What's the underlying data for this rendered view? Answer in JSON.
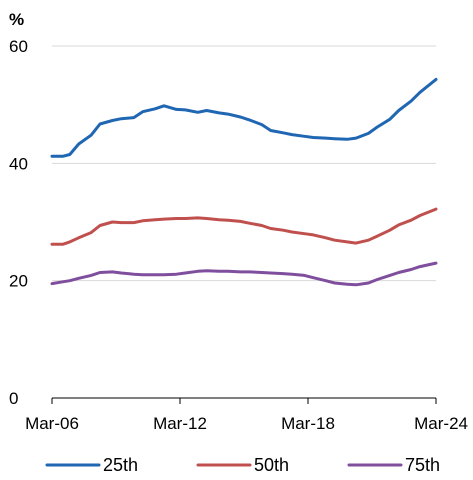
{
  "chart_data": {
    "type": "line",
    "y_unit": "%",
    "ylim": [
      0,
      60
    ],
    "y_ticks": [
      0,
      20,
      40,
      60
    ],
    "y_tick_labels": [
      "0",
      "20",
      "40",
      "60"
    ],
    "x_range": [
      "2006-03",
      "2024-03"
    ],
    "x_ticks": [
      "2006-03",
      "2012-03",
      "2018-03",
      "2024-03"
    ],
    "x_tick_labels": [
      "Mar-06",
      "Mar-12",
      "Mar-18",
      "Mar-24"
    ],
    "grid": "horizontal",
    "legend_position": "bottom",
    "series": [
      {
        "name": "25th",
        "color": "#1f66b3",
        "points": [
          [
            "2006-03",
            41.2
          ],
          [
            "2006-09",
            41.2
          ],
          [
            "2007-01",
            41.5
          ],
          [
            "2007-06",
            43.3
          ],
          [
            "2008-01",
            44.8
          ],
          [
            "2008-06",
            46.7
          ],
          [
            "2009-01",
            47.3
          ],
          [
            "2009-06",
            47.6
          ],
          [
            "2010-01",
            47.8
          ],
          [
            "2010-06",
            48.8
          ],
          [
            "2011-01",
            49.3
          ],
          [
            "2011-06",
            49.8
          ],
          [
            "2012-01",
            49.2
          ],
          [
            "2012-06",
            49.1
          ],
          [
            "2013-01",
            48.7
          ],
          [
            "2013-06",
            49.0
          ],
          [
            "2014-01",
            48.6
          ],
          [
            "2014-06",
            48.4
          ],
          [
            "2015-01",
            47.9
          ],
          [
            "2015-06",
            47.4
          ],
          [
            "2016-01",
            46.6
          ],
          [
            "2016-06",
            45.6
          ],
          [
            "2017-01",
            45.2
          ],
          [
            "2017-06",
            44.9
          ],
          [
            "2018-01",
            44.6
          ],
          [
            "2018-06",
            44.4
          ],
          [
            "2019-01",
            44.3
          ],
          [
            "2019-06",
            44.2
          ],
          [
            "2020-01",
            44.1
          ],
          [
            "2020-06",
            44.3
          ],
          [
            "2021-01",
            45.1
          ],
          [
            "2021-06",
            46.2
          ],
          [
            "2022-01",
            47.5
          ],
          [
            "2022-06",
            49.0
          ],
          [
            "2023-01",
            50.6
          ],
          [
            "2023-06",
            52.1
          ],
          [
            "2024-03",
            54.3
          ]
        ]
      },
      {
        "name": "50th",
        "color": "#c0504d",
        "points": [
          [
            "2006-03",
            26.2
          ],
          [
            "2006-09",
            26.2
          ],
          [
            "2007-01",
            26.6
          ],
          [
            "2007-06",
            27.3
          ],
          [
            "2008-01",
            28.2
          ],
          [
            "2008-06",
            29.4
          ],
          [
            "2009-01",
            30.0
          ],
          [
            "2009-06",
            29.9
          ],
          [
            "2010-01",
            29.9
          ],
          [
            "2010-06",
            30.2
          ],
          [
            "2011-01",
            30.4
          ],
          [
            "2011-06",
            30.5
          ],
          [
            "2012-01",
            30.6
          ],
          [
            "2012-06",
            30.6
          ],
          [
            "2013-01",
            30.7
          ],
          [
            "2013-06",
            30.6
          ],
          [
            "2014-01",
            30.4
          ],
          [
            "2014-06",
            30.3
          ],
          [
            "2015-01",
            30.1
          ],
          [
            "2015-06",
            29.8
          ],
          [
            "2016-01",
            29.4
          ],
          [
            "2016-06",
            28.9
          ],
          [
            "2017-01",
            28.6
          ],
          [
            "2017-06",
            28.3
          ],
          [
            "2018-01",
            28.0
          ],
          [
            "2018-06",
            27.8
          ],
          [
            "2019-01",
            27.3
          ],
          [
            "2019-06",
            26.9
          ],
          [
            "2020-01",
            26.6
          ],
          [
            "2020-06",
            26.4
          ],
          [
            "2021-01",
            26.9
          ],
          [
            "2021-06",
            27.6
          ],
          [
            "2022-01",
            28.6
          ],
          [
            "2022-06",
            29.5
          ],
          [
            "2023-01",
            30.3
          ],
          [
            "2023-06",
            31.1
          ],
          [
            "2024-03",
            32.2
          ]
        ]
      },
      {
        "name": "75th",
        "color": "#7f4f9e",
        "points": [
          [
            "2006-03",
            19.5
          ],
          [
            "2006-09",
            19.8
          ],
          [
            "2007-01",
            20.0
          ],
          [
            "2007-06",
            20.4
          ],
          [
            "2008-01",
            20.9
          ],
          [
            "2008-06",
            21.4
          ],
          [
            "2009-01",
            21.5
          ],
          [
            "2009-06",
            21.3
          ],
          [
            "2010-01",
            21.1
          ],
          [
            "2010-06",
            21.0
          ],
          [
            "2011-01",
            21.0
          ],
          [
            "2011-06",
            21.0
          ],
          [
            "2012-01",
            21.1
          ],
          [
            "2012-06",
            21.3
          ],
          [
            "2013-01",
            21.6
          ],
          [
            "2013-06",
            21.7
          ],
          [
            "2014-01",
            21.6
          ],
          [
            "2014-06",
            21.6
          ],
          [
            "2015-01",
            21.5
          ],
          [
            "2015-06",
            21.5
          ],
          [
            "2016-01",
            21.4
          ],
          [
            "2016-06",
            21.3
          ],
          [
            "2017-01",
            21.2
          ],
          [
            "2017-06",
            21.1
          ],
          [
            "2018-01",
            20.9
          ],
          [
            "2018-06",
            20.5
          ],
          [
            "2019-01",
            20.0
          ],
          [
            "2019-06",
            19.6
          ],
          [
            "2020-01",
            19.4
          ],
          [
            "2020-06",
            19.3
          ],
          [
            "2021-01",
            19.6
          ],
          [
            "2021-06",
            20.2
          ],
          [
            "2022-01",
            20.9
          ],
          [
            "2022-06",
            21.4
          ],
          [
            "2023-01",
            21.9
          ],
          [
            "2023-06",
            22.4
          ],
          [
            "2024-03",
            23.0
          ]
        ]
      }
    ]
  }
}
